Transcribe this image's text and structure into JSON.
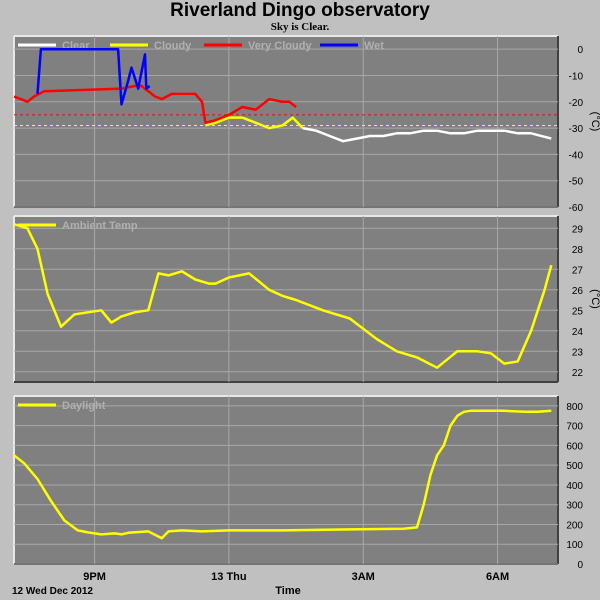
{
  "header": {
    "title": "Riverland Dingo observatory",
    "subtitle": "Sky is Clear."
  },
  "footer": {
    "date_label": "12 Wed Dec 2012",
    "axis_label": "Time"
  },
  "colors": {
    "background": "#c0c0c0",
    "plot_bg": "#808080",
    "grid": "#a8a8a8",
    "clear": "#ffffff",
    "cloudy": "#ffff00",
    "very_cloudy": "#ff0000",
    "wet": "#0000ff",
    "temp": "#ffff00",
    "daylight": "#ffff00"
  },
  "chart_data": [
    {
      "type": "line",
      "title": "",
      "ylabel": "(°C)",
      "ylim": [
        -60,
        5
      ],
      "yticks": [
        0,
        -10,
        -20,
        -30,
        -40,
        -50,
        -60
      ],
      "xticks": [
        "9PM",
        "13 Thu",
        "3AM",
        "6AM"
      ],
      "legend_placement": "top-left",
      "threshold_lines": [
        {
          "value": -25,
          "color": "#ff0000"
        },
        {
          "value": -29,
          "color": "#ffff00"
        }
      ],
      "series": [
        {
          "name": "Clear",
          "x": [
            4.3,
            4.5,
            4.7,
            4.9,
            5.1,
            5.3,
            5.5,
            5.7,
            5.9,
            6.1,
            6.3,
            6.5,
            6.7,
            6.9,
            7.1,
            7.3,
            7.5,
            7.7,
            8.0
          ],
          "values": [
            -30,
            -31,
            -33,
            -35,
            -34,
            -33,
            -33,
            -32,
            -32,
            -31,
            -31,
            -32,
            -32,
            -31,
            -31,
            -31,
            -32,
            -32,
            -34
          ]
        },
        {
          "name": "Cloudy",
          "x": [
            2.85,
            3.0,
            3.2,
            3.4,
            3.6,
            3.8,
            4.0,
            4.15,
            4.3
          ],
          "values": [
            -29,
            -28,
            -26,
            -26,
            -28,
            -30,
            -29,
            -26,
            -30
          ]
        },
        {
          "name": "Very Cloudy",
          "x": [
            0.0,
            0.1,
            0.2,
            0.3,
            0.45,
            1.6,
            1.8,
            1.9,
            2.1,
            2.2,
            2.35,
            2.5,
            2.6,
            2.7,
            2.8,
            2.85,
            3.0,
            3.2,
            3.4,
            3.6,
            3.8,
            4.0,
            4.1,
            4.2
          ],
          "values": [
            -18,
            -19,
            -20,
            -18,
            -16,
            -15,
            -14,
            -14,
            -18,
            -19,
            -17,
            -17,
            -17,
            -17,
            -20,
            -28,
            -27,
            -25,
            -22,
            -23,
            -19,
            -20,
            -20,
            -22
          ]
        },
        {
          "name": "Wet",
          "x": [
            0.35,
            0.4,
            1.55,
            1.6,
            1.7,
            1.75,
            1.85,
            1.95,
            1.97,
            2.02
          ],
          "values": [
            -17,
            0,
            0,
            -21,
            -12,
            -7,
            -15,
            -2,
            -15,
            -14
          ]
        }
      ]
    },
    {
      "type": "line",
      "title": "",
      "ylabel": "(°C)",
      "ylim": [
        21.5,
        29.6
      ],
      "yticks": [
        22,
        23,
        24,
        25,
        26,
        27,
        28,
        29
      ],
      "xticks": [
        "9PM",
        "13 Thu",
        "3AM",
        "6AM"
      ],
      "legend_placement": "top-left",
      "series": [
        {
          "name": "Ambient Temp",
          "x": [
            0.0,
            0.2,
            0.35,
            0.5,
            0.7,
            0.9,
            1.1,
            1.3,
            1.45,
            1.6,
            1.8,
            2.0,
            2.15,
            2.3,
            2.5,
            2.7,
            2.9,
            3.0,
            3.2,
            3.5,
            3.8,
            4.0,
            4.2,
            4.6,
            5.0,
            5.4,
            5.7,
            6.0,
            6.3,
            6.6,
            6.9,
            7.1,
            7.3,
            7.5,
            7.7,
            7.9,
            8.0
          ],
          "values": [
            29.2,
            29.0,
            28.0,
            25.8,
            24.2,
            24.8,
            24.9,
            25.0,
            24.4,
            24.7,
            24.9,
            25.0,
            26.8,
            26.7,
            26.9,
            26.5,
            26.3,
            26.3,
            26.6,
            26.8,
            26.0,
            25.7,
            25.5,
            25.0,
            24.6,
            23.6,
            23.0,
            22.7,
            22.2,
            23.0,
            23.0,
            22.9,
            22.4,
            22.5,
            24.0,
            26.0,
            27.2
          ]
        }
      ]
    },
    {
      "type": "line",
      "title": "",
      "ylabel": "",
      "ylim": [
        0,
        850
      ],
      "yticks": [
        0,
        100,
        200,
        300,
        400,
        500,
        600,
        700,
        800
      ],
      "xticks": [
        "9PM",
        "13 Thu",
        "3AM",
        "6AM"
      ],
      "legend_placement": "top-left",
      "series": [
        {
          "name": "Daylight",
          "x": [
            0.0,
            0.15,
            0.35,
            0.55,
            0.75,
            0.95,
            1.1,
            1.3,
            1.5,
            1.6,
            1.7,
            2.0,
            2.2,
            2.3,
            2.5,
            2.8,
            3.2,
            4.0,
            5.0,
            5.8,
            6.0,
            6.1,
            6.2,
            6.3,
            6.4,
            6.5,
            6.6,
            6.7,
            6.8,
            7.0,
            7.3,
            7.6,
            7.8,
            8.0
          ],
          "values": [
            550,
            510,
            430,
            320,
            220,
            170,
            160,
            150,
            155,
            150,
            158,
            165,
            130,
            165,
            170,
            165,
            170,
            170,
            175,
            178,
            185,
            300,
            450,
            550,
            600,
            700,
            750,
            770,
            775,
            775,
            775,
            770,
            770,
            775
          ]
        }
      ]
    }
  ]
}
